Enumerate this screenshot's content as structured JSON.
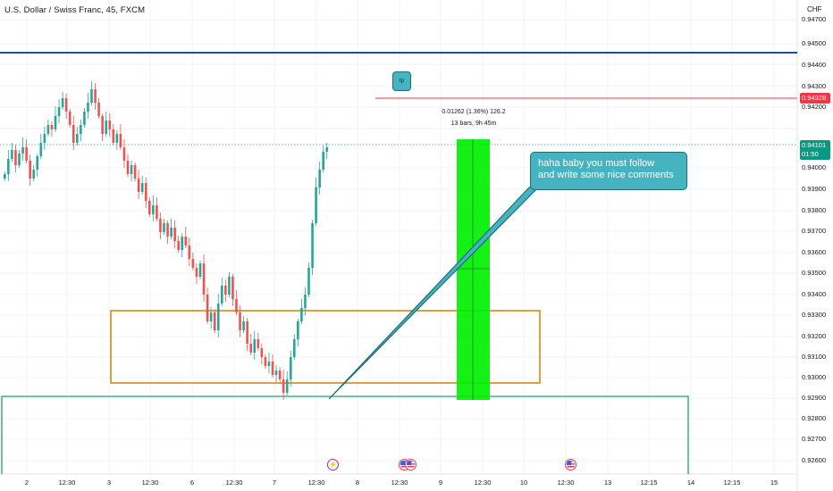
{
  "header": {
    "symbol_title": "U.S. Dollar / Swiss Franc, 45, FXCM",
    "currency_label": "CHF"
  },
  "price_axis": {
    "labels": [
      "0.94700",
      "0.94500",
      "0.94400",
      "0.94300",
      "0.94200",
      "0.94000",
      "0.93900",
      "0.93800",
      "0.93700",
      "0.93600",
      "0.93500",
      "0.93400",
      "0.93300",
      "0.93200",
      "0.93100",
      "0.93000",
      "0.92900",
      "0.92800",
      "0.92700",
      "0.92600"
    ],
    "tp_price_tag": "0.94328",
    "current_price_tag": "0.94101",
    "countdown_tag": "01:50"
  },
  "time_axis": {
    "labels": [
      "2",
      "12:30",
      "3",
      "12:30",
      "6",
      "12:30",
      "7",
      "12:30",
      "8",
      "12:30",
      "9",
      "12:30",
      "10",
      "12:30",
      "13",
      "12:15",
      "14",
      "12:15",
      "15"
    ]
  },
  "measure_tool": {
    "line1": "0.01262 (1.36%) 126.2",
    "line2": "13 bars, 9h 45m"
  },
  "annotations": {
    "tp_label": "tp",
    "comment_line1": "haha baby you must follow",
    "comment_line2": "and write some nice comments"
  },
  "events": [
    "bolt-icon",
    "us-flag-icon",
    "us-flag-icon",
    "us-flag-icon"
  ],
  "colors": {
    "up": "#26a69a",
    "down": "#ef5350",
    "blue_line": "#1e4fa8",
    "red_line": "#f23645",
    "orange_box": "#d68910",
    "green_box": "#4caf85",
    "measure_fill": "#00ff00",
    "callout": "#46b4c0"
  }
}
